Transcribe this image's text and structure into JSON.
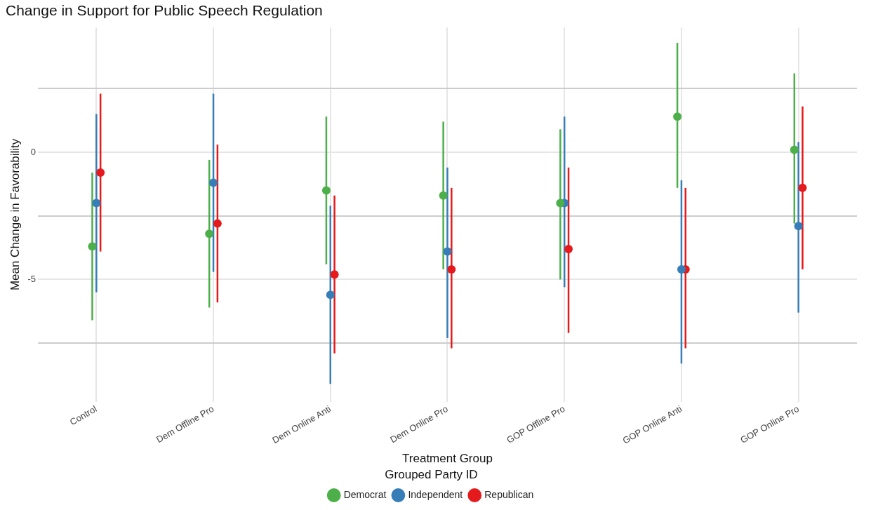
{
  "chart_data": {
    "type": "scatter",
    "title": "Change in Support for Public Speech Regulation",
    "xlabel": "Treatment Group",
    "ylabel": "Mean Change in Favorability",
    "legend_title": "Grouped Party ID",
    "categories": [
      "Control",
      "Dem Offline Pro",
      "Dem Online Anti",
      "Dem Online Pro",
      "GOP Offline Pro",
      "GOP Online Anti",
      "GOP Online Pro"
    ],
    "series": [
      {
        "name": "Democrat",
        "color": "#4daf4a",
        "values": [
          -3.7,
          -3.2,
          -1.5,
          -1.7,
          -2.0,
          1.4,
          0.1
        ],
        "errors": [
          [
            -6.6,
            -0.8
          ],
          [
            -6.1,
            -0.3
          ],
          [
            -4.4,
            1.4
          ],
          [
            -4.6,
            1.2
          ],
          [
            -5.0,
            0.9
          ],
          [
            -1.4,
            4.3
          ],
          [
            -2.8,
            3.1
          ]
        ]
      },
      {
        "name": "Independent",
        "color": "#377eb8",
        "values": [
          -2.0,
          -1.2,
          -5.6,
          -3.9,
          -2.0,
          -4.6,
          -2.9
        ],
        "errors": [
          [
            -5.5,
            1.5
          ],
          [
            -4.7,
            2.3
          ],
          [
            -9.1,
            -2.1
          ],
          [
            -7.3,
            -0.6
          ],
          [
            -5.3,
            1.4
          ],
          [
            -8.3,
            -1.1
          ],
          [
            -6.3,
            0.4
          ]
        ]
      },
      {
        "name": "Republican",
        "color": "#e41a1c",
        "values": [
          -0.8,
          -2.8,
          -4.8,
          -4.6,
          -3.8,
          -4.6,
          -1.4
        ],
        "errors": [
          [
            -3.9,
            2.3
          ],
          [
            -5.9,
            0.3
          ],
          [
            -7.9,
            -1.7
          ],
          [
            -7.7,
            -1.4
          ],
          [
            -7.1,
            -0.6
          ],
          [
            -7.7,
            -1.4
          ],
          [
            -4.6,
            1.8
          ]
        ]
      }
    ],
    "ylim": [
      -9.8,
      4.9
    ],
    "yticks": [
      {
        "value": -7.5,
        "label": null
      },
      -5,
      {
        "value": -2.5,
        "label": null
      },
      0,
      {
        "value": 2.5,
        "label": null
      }
    ],
    "grid": true,
    "legend": "bottom",
    "marker": "circle"
  }
}
